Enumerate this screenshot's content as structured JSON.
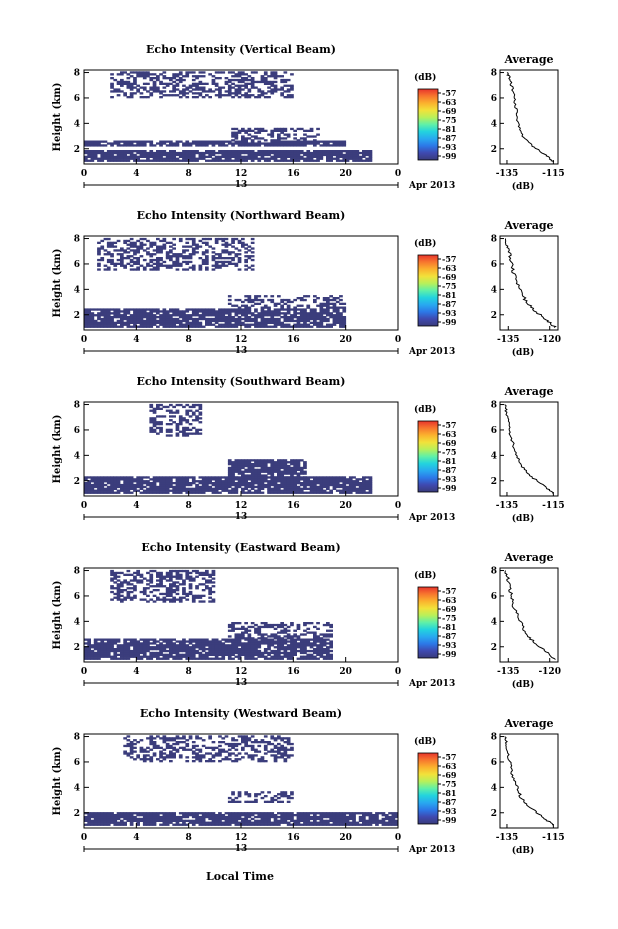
{
  "colors": {
    "echo": "#3b3d7c",
    "colorbar": [
      "#393b7a",
      "#3f49b0",
      "#2c78e8",
      "#28a9f0",
      "#22d3de",
      "#5ff0a8",
      "#b8f05a",
      "#f2e23a",
      "#fbb22e",
      "#f7772e",
      "#e8342c"
    ]
  },
  "xlabel": "Local Time",
  "chart_data": [
    {
      "type": "heatmap",
      "title": "Echo Intensity (Vertical Beam)",
      "ylabel": "Height (km)",
      "xticks": [
        "0",
        "4",
        "8",
        "12",
        "16",
        "20",
        "0"
      ],
      "date_tick": "13",
      "date_label": "Apr 2013",
      "ylim": [
        0.8,
        8.2
      ],
      "yticks": [
        "2",
        "4",
        "6",
        "8"
      ],
      "xlim": [
        0,
        24
      ],
      "colorbar": {
        "unit": "(dB)",
        "ticks": [
          "-57",
          "-63",
          "-69",
          "-75",
          "-81",
          "-87",
          "-93",
          "-99"
        ]
      },
      "echo_regions": [
        {
          "x": [
            0,
            22
          ],
          "y": [
            1.0,
            1.8
          ]
        },
        {
          "x": [
            0,
            20
          ],
          "y": [
            2.2,
            2.6
          ]
        },
        {
          "x": [
            11,
            18
          ],
          "y": [
            2.6,
            3.6
          ]
        },
        {
          "x": [
            2,
            16
          ],
          "y": [
            6.0,
            8.0
          ]
        }
      ],
      "profile": {
        "title": "Average",
        "xticks": [
          "-135",
          "-115"
        ],
        "xlim": [
          -138,
          -113
        ],
        "unit": "(dB)",
        "yticks": [
          "2",
          "4",
          "6",
          "8"
        ],
        "x": [
          -115,
          -118,
          -124,
          -128,
          -130,
          -131,
          -132,
          -133,
          -134,
          -135
        ],
        "y": [
          1.0,
          1.5,
          2.2,
          3.0,
          4.0,
          5.0,
          6.0,
          7.0,
          7.6,
          8.0
        ]
      }
    },
    {
      "type": "heatmap",
      "title": "Echo Intensity (Northward Beam)",
      "ylabel": "Height (km)",
      "xticks": [
        "0",
        "4",
        "8",
        "12",
        "16",
        "20",
        "0"
      ],
      "date_tick": "13",
      "date_label": "Apr 2013",
      "ylim": [
        0.8,
        8.2
      ],
      "yticks": [
        "2",
        "4",
        "6",
        "8"
      ],
      "xlim": [
        0,
        24
      ],
      "colorbar": {
        "unit": "(dB)",
        "ticks": [
          "-57",
          "-63",
          "-69",
          "-75",
          "-81",
          "-87",
          "-93",
          "-99"
        ]
      },
      "echo_regions": [
        {
          "x": [
            0,
            20
          ],
          "y": [
            1.0,
            2.4
          ]
        },
        {
          "x": [
            11,
            20
          ],
          "y": [
            2.5,
            3.5
          ]
        },
        {
          "x": [
            1,
            13
          ],
          "y": [
            5.5,
            8.0
          ]
        }
      ],
      "profile": {
        "title": "Average",
        "xticks": [
          "-135",
          "-120"
        ],
        "xlim": [
          -138,
          -117
        ],
        "unit": "(dB)",
        "yticks": [
          "2",
          "4",
          "6",
          "8"
        ],
        "x": [
          -118,
          -121,
          -126,
          -129,
          -131,
          -133,
          -134,
          -135,
          -136
        ],
        "y": [
          1.0,
          1.6,
          2.4,
          3.2,
          4.2,
          5.2,
          6.2,
          7.2,
          8.0
        ]
      }
    },
    {
      "type": "heatmap",
      "title": "Echo Intensity (Southward Beam)",
      "ylabel": "Height (km)",
      "xticks": [
        "0",
        "4",
        "8",
        "12",
        "16",
        "20",
        "0"
      ],
      "date_tick": "13",
      "date_label": "Apr 2013",
      "ylim": [
        0.8,
        8.2
      ],
      "yticks": [
        "2",
        "4",
        "6",
        "8"
      ],
      "xlim": [
        0,
        24
      ],
      "colorbar": {
        "unit": "(dB)",
        "ticks": [
          "-57",
          "-63",
          "-69",
          "-75",
          "-81",
          "-87",
          "-93",
          "-99"
        ]
      },
      "echo_regions": [
        {
          "x": [
            0,
            22
          ],
          "y": [
            1.0,
            2.2
          ]
        },
        {
          "x": [
            11,
            17
          ],
          "y": [
            2.2,
            3.6
          ]
        },
        {
          "x": [
            5,
            9
          ],
          "y": [
            5.5,
            8.0
          ]
        }
      ],
      "profile": {
        "title": "Average",
        "xticks": [
          "-135",
          "-115"
        ],
        "xlim": [
          -138,
          -113
        ],
        "unit": "(dB)",
        "yticks": [
          "2",
          "4",
          "6",
          "8"
        ],
        "x": [
          -115,
          -119,
          -125,
          -129,
          -131,
          -133,
          -134,
          -135,
          -136
        ],
        "y": [
          1.0,
          1.6,
          2.4,
          3.2,
          4.2,
          5.2,
          6.2,
          7.2,
          8.0
        ]
      }
    },
    {
      "type": "heatmap",
      "title": "Echo Intensity (Eastward Beam)",
      "ylabel": "Height (km)",
      "xticks": [
        "0",
        "4",
        "8",
        "12",
        "16",
        "20",
        "0"
      ],
      "date_tick": "13",
      "date_label": "Apr 2013",
      "ylim": [
        0.8,
        8.2
      ],
      "yticks": [
        "2",
        "4",
        "6",
        "8"
      ],
      "xlim": [
        0,
        24
      ],
      "colorbar": {
        "unit": "(dB)",
        "ticks": [
          "-57",
          "-63",
          "-69",
          "-75",
          "-81",
          "-87",
          "-93",
          "-99"
        ]
      },
      "echo_regions": [
        {
          "x": [
            0,
            19
          ],
          "y": [
            1.0,
            2.6
          ]
        },
        {
          "x": [
            11,
            19
          ],
          "y": [
            2.6,
            3.8
          ]
        },
        {
          "x": [
            2,
            10
          ],
          "y": [
            5.5,
            8.0
          ]
        }
      ],
      "profile": {
        "title": "Average",
        "xticks": [
          "-135",
          "-120"
        ],
        "xlim": [
          -138,
          -117
        ],
        "unit": "(dB)",
        "yticks": [
          "2",
          "4",
          "6",
          "8"
        ],
        "x": [
          -118,
          -121,
          -126,
          -129,
          -131,
          -133,
          -134,
          -135,
          -136
        ],
        "y": [
          1.0,
          1.6,
          2.4,
          3.2,
          4.2,
          5.2,
          6.2,
          7.2,
          8.0
        ]
      }
    },
    {
      "type": "heatmap",
      "title": "Echo Intensity (Westward Beam)",
      "ylabel": "Height (km)",
      "xticks": [
        "0",
        "4",
        "8",
        "12",
        "16",
        "20",
        "0"
      ],
      "date_tick": "13",
      "date_label": "Apr 2013",
      "ylim": [
        0.8,
        8.2
      ],
      "yticks": [
        "2",
        "4",
        "6",
        "8"
      ],
      "xlim": [
        0,
        24
      ],
      "colorbar": {
        "unit": "(dB)",
        "ticks": [
          "-57",
          "-63",
          "-69",
          "-75",
          "-81",
          "-87",
          "-93",
          "-99"
        ]
      },
      "echo_regions": [
        {
          "x": [
            0,
            24
          ],
          "y": [
            1.0,
            2.0
          ]
        },
        {
          "x": [
            11,
            16
          ],
          "y": [
            2.8,
            3.6
          ]
        },
        {
          "x": [
            3,
            16
          ],
          "y": [
            6.0,
            8.0
          ]
        }
      ],
      "profile": {
        "title": "Average",
        "xticks": [
          "-135",
          "-115"
        ],
        "xlim": [
          -138,
          -113
        ],
        "unit": "(dB)",
        "yticks": [
          "2",
          "4",
          "6",
          "8"
        ],
        "x": [
          -115,
          -119,
          -125,
          -129,
          -131,
          -133,
          -134,
          -135,
          -136
        ],
        "y": [
          1.0,
          1.6,
          2.4,
          3.2,
          4.2,
          5.2,
          6.2,
          7.2,
          8.0
        ]
      }
    }
  ]
}
